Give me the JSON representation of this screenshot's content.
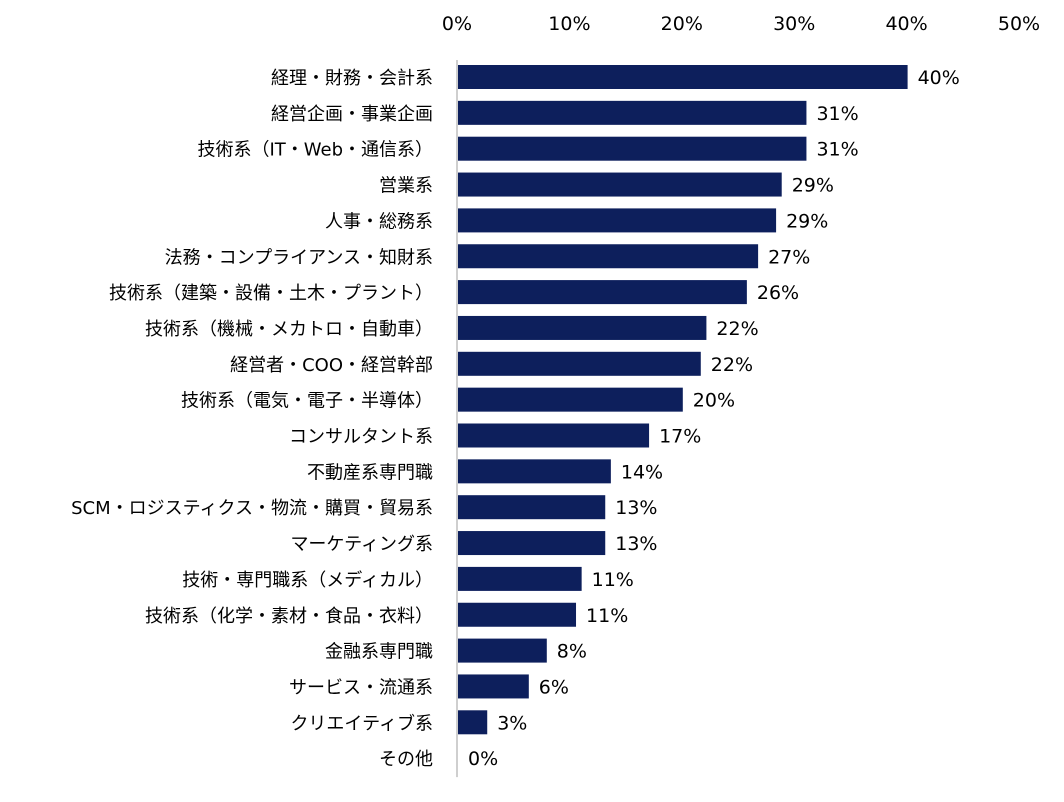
{
  "chart_data": {
    "type": "bar",
    "orientation": "horizontal",
    "categories": [
      "経理・財務・会計系",
      "経営企画・事業企画",
      "技術系（IT・Web・通信系）",
      "営業系",
      "人事・総務系",
      "法務・コンプライアンス・知財系",
      "技術系（建築・設備・土木・プラント）",
      "技術系（機械・メカトロ・自動車）",
      "経営者・COO・経営幹部",
      "技術系（電気・電子・半導体）",
      "コンサルタント系",
      "不動産系専門職",
      "SCM・ロジスティクス・物流・購買・貿易系",
      "マーケティング系",
      "技術・専門職系（メディカル）",
      "技術系（化学・素材・食品・衣料）",
      "金融系専門職",
      "サービス・流通系",
      "クリエイティブ系",
      "その他"
    ],
    "values": [
      40,
      31,
      31,
      29,
      29,
      27,
      26,
      22,
      22,
      20,
      17,
      14,
      13,
      13,
      11,
      11,
      8,
      6,
      3,
      0
    ],
    "bar_widths_percent": [
      40.0,
      31.0,
      31.0,
      28.8,
      28.3,
      26.7,
      25.7,
      22.1,
      21.6,
      20.0,
      17.0,
      13.6,
      13.1,
      13.1,
      11.0,
      10.5,
      7.9,
      6.3,
      2.6,
      0.0
    ],
    "data_labels": [
      "40%",
      "31%",
      "31%",
      "29%",
      "29%",
      "27%",
      "26%",
      "22%",
      "22%",
      "20%",
      "17%",
      "14%",
      "13%",
      "13%",
      "11%",
      "11%",
      "8%",
      "6%",
      "3%",
      "0%"
    ],
    "x_ticks": [
      "0%",
      "10%",
      "20%",
      "30%",
      "40%",
      "50%"
    ],
    "x_tick_values": [
      0,
      10,
      20,
      30,
      40,
      50
    ],
    "xlim": [
      0,
      50
    ],
    "axis_position": "top",
    "grid": false,
    "legend": "none",
    "colors": {
      "bar": "#0d1f5c",
      "axis": "#bfbfbf",
      "text": "#000000"
    }
  }
}
